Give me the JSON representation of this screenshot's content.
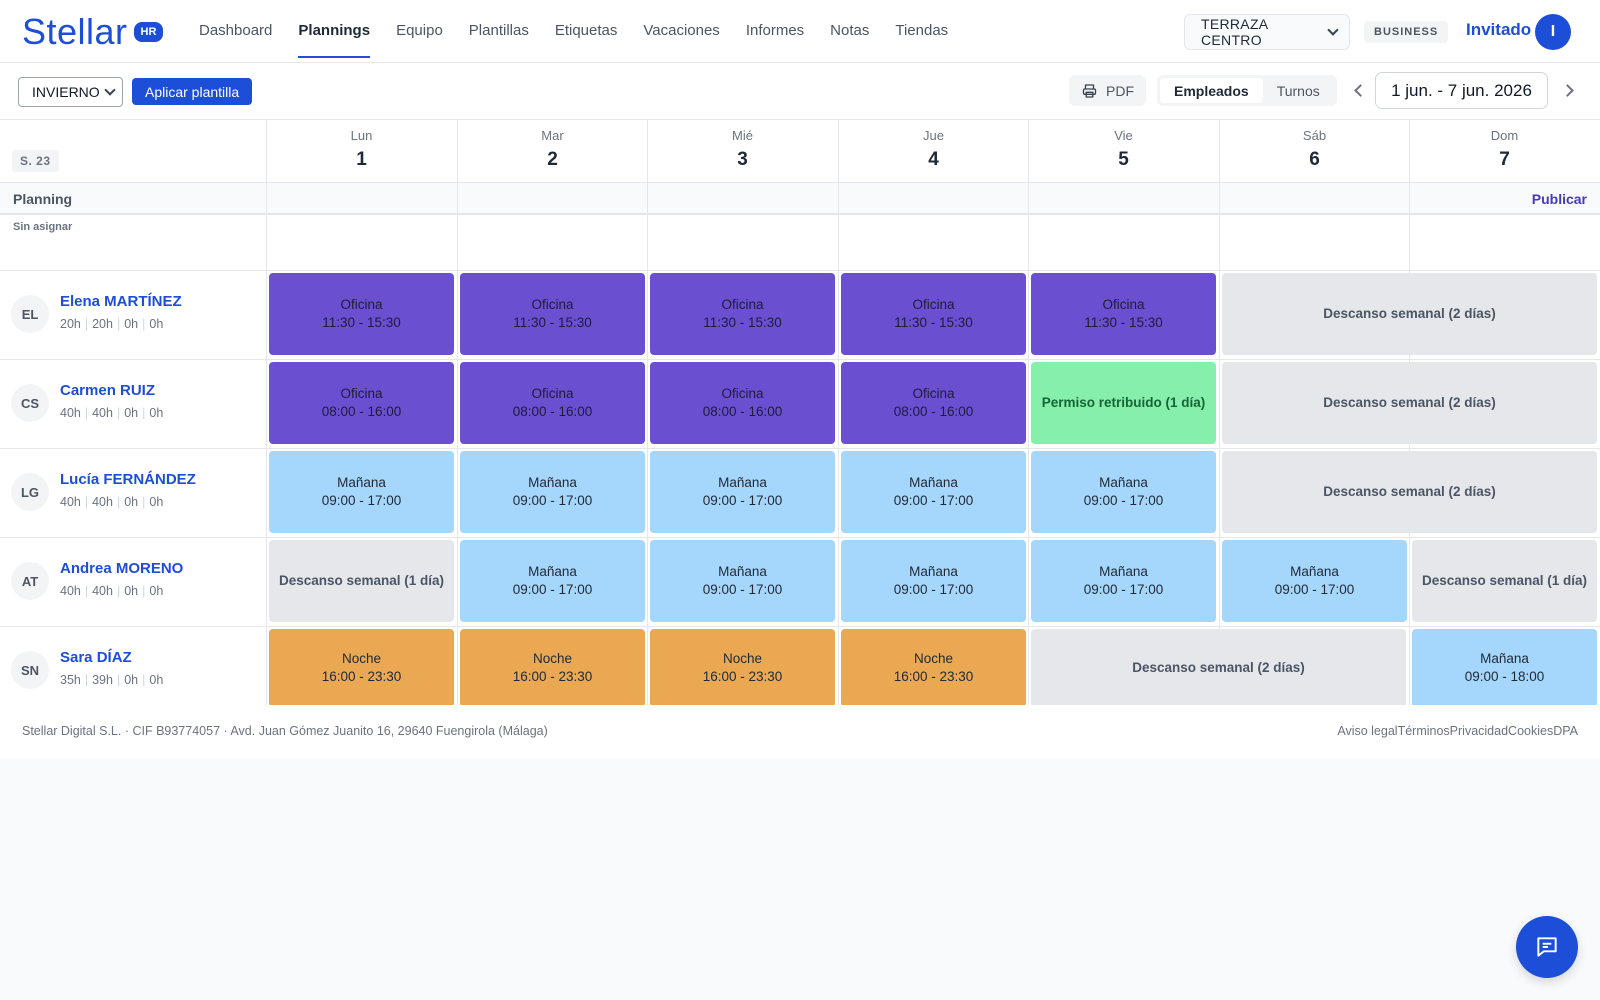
{
  "app": {
    "logo": "Stellar",
    "logo_badge": "HR"
  },
  "nav": {
    "items": [
      {
        "label": "Dashboard",
        "active": false
      },
      {
        "label": "Plannings",
        "active": true
      },
      {
        "label": "Equipo",
        "active": false
      },
      {
        "label": "Plantillas",
        "active": false
      },
      {
        "label": "Etiquetas",
        "active": false
      },
      {
        "label": "Vacaciones",
        "active": false
      },
      {
        "label": "Informes",
        "active": false
      },
      {
        "label": "Notas",
        "active": false
      },
      {
        "label": "Tiendas",
        "active": false
      }
    ],
    "store": "TERRAZA CENTRO",
    "plan_badge": "BUSINESS",
    "user_name": "Invitado",
    "user_initial": "I"
  },
  "toolbar": {
    "season": "INVIERNO",
    "apply_label": "Aplicar plantilla",
    "pdf_label": "PDF",
    "view_options": [
      "Empleados",
      "Turnos"
    ],
    "view_active": "Empleados",
    "date_range": "1 jun. - 7 jun. 2026"
  },
  "grid": {
    "week_label": "S. 23",
    "days": [
      {
        "name": "Lun",
        "num": "1"
      },
      {
        "name": "Mar",
        "num": "2"
      },
      {
        "name": "Mié",
        "num": "3"
      },
      {
        "name": "Jue",
        "num": "4"
      },
      {
        "name": "Vie",
        "num": "5"
      },
      {
        "name": "Sáb",
        "num": "6"
      },
      {
        "name": "Dom",
        "num": "7"
      }
    ],
    "planning_label": "Planning",
    "publish_label": "Publicar",
    "unassigned_label": "Sin asignar",
    "employees": [
      {
        "initials": "EL",
        "name": "Elena MARTÍNEZ",
        "hours": [
          "20h",
          "20h",
          "0h",
          "0h"
        ],
        "shifts": [
          {
            "start": 0,
            "span": 1,
            "kind": "purple",
            "title": "Oficina",
            "time": "11:30 - 15:30"
          },
          {
            "start": 1,
            "span": 1,
            "kind": "purple",
            "title": "Oficina",
            "time": "11:30 - 15:30"
          },
          {
            "start": 2,
            "span": 1,
            "kind": "purple",
            "title": "Oficina",
            "time": "11:30 - 15:30"
          },
          {
            "start": 3,
            "span": 1,
            "kind": "purple",
            "title": "Oficina",
            "time": "11:30 - 15:30"
          },
          {
            "start": 4,
            "span": 1,
            "kind": "purple",
            "title": "Oficina",
            "time": "11:30 - 15:30"
          },
          {
            "start": 5,
            "span": 2,
            "kind": "rest",
            "title": "Descanso semanal (2 días)",
            "time": ""
          }
        ]
      },
      {
        "initials": "CS",
        "name": "Carmen RUIZ",
        "hours": [
          "40h",
          "40h",
          "0h",
          "0h"
        ],
        "shifts": [
          {
            "start": 0,
            "span": 1,
            "kind": "purple",
            "title": "Oficina",
            "time": "08:00 - 16:00"
          },
          {
            "start": 1,
            "span": 1,
            "kind": "purple",
            "title": "Oficina",
            "time": "08:00 - 16:00"
          },
          {
            "start": 2,
            "span": 1,
            "kind": "purple",
            "title": "Oficina",
            "time": "08:00 - 16:00"
          },
          {
            "start": 3,
            "span": 1,
            "kind": "purple",
            "title": "Oficina",
            "time": "08:00 - 16:00"
          },
          {
            "start": 4,
            "span": 1,
            "kind": "green",
            "title": "Permiso retribuido (1 día)",
            "time": ""
          },
          {
            "start": 5,
            "span": 2,
            "kind": "rest",
            "title": "Descanso semanal (2 días)",
            "time": ""
          }
        ]
      },
      {
        "initials": "LG",
        "name": "Lucía FERNÁNDEZ",
        "hours": [
          "40h",
          "40h",
          "0h",
          "0h"
        ],
        "shifts": [
          {
            "start": 0,
            "span": 1,
            "kind": "blue",
            "title": "Mañana",
            "time": "09:00 - 17:00"
          },
          {
            "start": 1,
            "span": 1,
            "kind": "blue",
            "title": "Mañana",
            "time": "09:00 - 17:00"
          },
          {
            "start": 2,
            "span": 1,
            "kind": "blue",
            "title": "Mañana",
            "time": "09:00 - 17:00"
          },
          {
            "start": 3,
            "span": 1,
            "kind": "blue",
            "title": "Mañana",
            "time": "09:00 - 17:00"
          },
          {
            "start": 4,
            "span": 1,
            "kind": "blue",
            "title": "Mañana",
            "time": "09:00 - 17:00"
          },
          {
            "start": 5,
            "span": 2,
            "kind": "rest",
            "title": "Descanso semanal (2 días)",
            "time": ""
          }
        ]
      },
      {
        "initials": "AT",
        "name": "Andrea MORENO",
        "hours": [
          "40h",
          "40h",
          "0h",
          "0h"
        ],
        "shifts": [
          {
            "start": 0,
            "span": 1,
            "kind": "rest",
            "title": "Descanso semanal (1 día)",
            "time": ""
          },
          {
            "start": 1,
            "span": 1,
            "kind": "blue",
            "title": "Mañana",
            "time": "09:00 - 17:00"
          },
          {
            "start": 2,
            "span": 1,
            "kind": "blue",
            "title": "Mañana",
            "time": "09:00 - 17:00"
          },
          {
            "start": 3,
            "span": 1,
            "kind": "blue",
            "title": "Mañana",
            "time": "09:00 - 17:00"
          },
          {
            "start": 4,
            "span": 1,
            "kind": "blue",
            "title": "Mañana",
            "time": "09:00 - 17:00"
          },
          {
            "start": 5,
            "span": 1,
            "kind": "blue",
            "title": "Mañana",
            "time": "09:00 - 17:00"
          },
          {
            "start": 6,
            "span": 1,
            "kind": "rest",
            "title": "Descanso semanal (1 día)",
            "time": ""
          }
        ]
      },
      {
        "initials": "SN",
        "name": "Sara DÍAZ",
        "hours": [
          "35h",
          "39h",
          "0h",
          "0h"
        ],
        "shifts": [
          {
            "start": 0,
            "span": 1,
            "kind": "orange",
            "title": "Noche",
            "time": "16:00 - 23:30"
          },
          {
            "start": 1,
            "span": 1,
            "kind": "orange",
            "title": "Noche",
            "time": "16:00 - 23:30"
          },
          {
            "start": 2,
            "span": 1,
            "kind": "orange",
            "title": "Noche",
            "time": "16:00 - 23:30"
          },
          {
            "start": 3,
            "span": 1,
            "kind": "orange",
            "title": "Noche",
            "time": "16:00 - 23:30"
          },
          {
            "start": 4,
            "span": 2,
            "kind": "rest",
            "title": "Descanso semanal (2 días)",
            "time": ""
          },
          {
            "start": 6,
            "span": 1,
            "kind": "blue",
            "title": "Mañana",
            "time": "09:00 - 18:00"
          }
        ]
      }
    ]
  },
  "footer": {
    "company": "Stellar Digital S.L. · CIF B93774057 · Avd. Juan Gómez Juanito 16, 29640 Fuengirola (Málaga)",
    "links": [
      "Aviso legal",
      "Términos",
      "Privacidad",
      "Cookies",
      "DPA"
    ]
  },
  "colors": {
    "brand": "#1d4ed8",
    "office": "#6b4fd1",
    "morning": "#a5d6fb",
    "night": "#eaa853",
    "leave": "#86efac",
    "rest": "#e5e7eb"
  },
  "icons": {
    "pdf": "printer-icon",
    "chat": "chat-icon"
  }
}
